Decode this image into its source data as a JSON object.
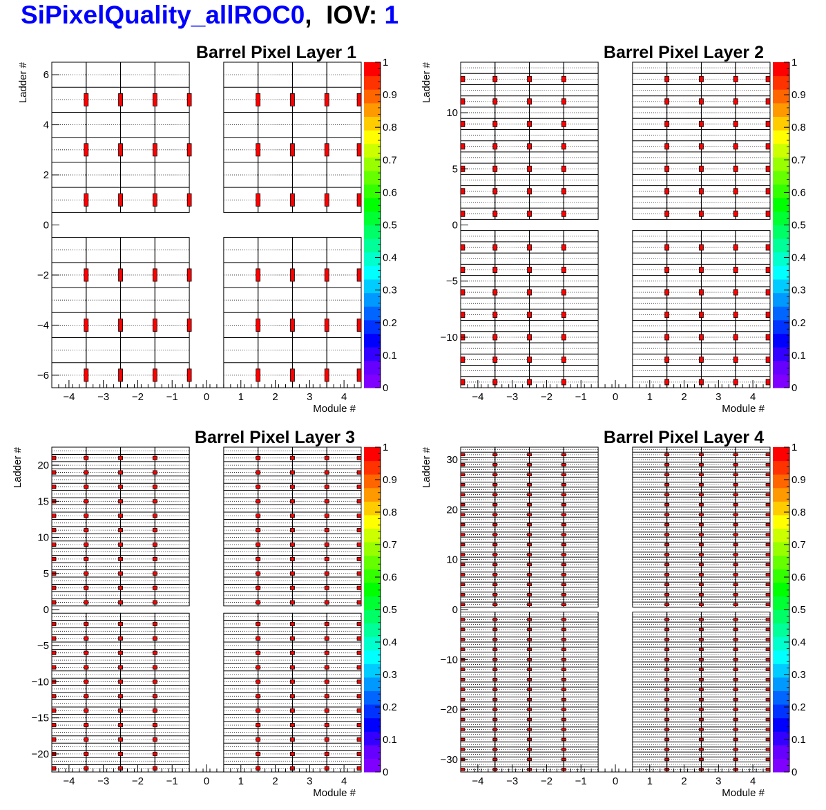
{
  "header": {
    "title_tag": "SiPixelQuality_allROC0",
    "separator": ",",
    "iov_label": "IOV:",
    "iov_value": "1"
  },
  "colorbar": {
    "ticks": [
      "0",
      "0.1",
      "0.2",
      "0.3",
      "0.4",
      "0.5",
      "0.6",
      "0.7",
      "0.8",
      "0.9",
      "1"
    ],
    "palette": [
      "#7f00ff",
      "#6600ff",
      "#3300ff",
      "#0000ff",
      "#0033ff",
      "#0066ff",
      "#0099ff",
      "#00ccff",
      "#00ffff",
      "#00ffcc",
      "#00ff99",
      "#00ff66",
      "#00ff33",
      "#00ff00",
      "#33ff00",
      "#66ff00",
      "#99ff00",
      "#ccff00",
      "#ffff00",
      "#ffcc00",
      "#ff9900",
      "#ff6600",
      "#ff3300",
      "#ff0000"
    ]
  },
  "chart_data": [
    {
      "type": "heatmap",
      "title": "Barrel Pixel Layer 1",
      "xlabel": "Module #",
      "ylabel": "Ladder #",
      "xlim": [
        -4.5,
        4.5
      ],
      "ylim": [
        -6.5,
        6.5
      ],
      "xticks": [
        "−4",
        "−3",
        "−2",
        "−1",
        "0",
        "1",
        "2",
        "3",
        "4"
      ],
      "yticks": [
        {
          "v": -6,
          "label": "−6"
        },
        {
          "v": -4,
          "label": "−4"
        },
        {
          "v": -2,
          "label": "−2"
        },
        {
          "v": 0,
          "label": "0"
        },
        {
          "v": 2,
          "label": "2"
        },
        {
          "v": 4,
          "label": "4"
        },
        {
          "v": 6,
          "label": "6"
        }
      ],
      "ladders": 6,
      "zlim": [
        0,
        1
      ],
      "masked_value": 1,
      "masked_columns": [
        -3.5,
        -2.5,
        -1.5,
        -0.5,
        1.5,
        2.5,
        3.5,
        4.5
      ],
      "masked_rows": [
        -6,
        -4,
        -2,
        1,
        3,
        5
      ]
    },
    {
      "type": "heatmap",
      "title": "Barrel Pixel Layer 2",
      "xlabel": "Module #",
      "ylabel": "Ladder #",
      "xlim": [
        -4.5,
        4.5
      ],
      "ylim": [
        -14.5,
        14.5
      ],
      "xticks": [
        "−4",
        "−3",
        "−2",
        "−1",
        "0",
        "1",
        "2",
        "3",
        "4"
      ],
      "yticks": [
        {
          "v": -10,
          "label": "−10"
        },
        {
          "v": -5,
          "label": "−5"
        },
        {
          "v": 0,
          "label": "0"
        },
        {
          "v": 5,
          "label": "5"
        },
        {
          "v": 10,
          "label": "10"
        }
      ],
      "ladders": 14,
      "zlim": [
        0,
        1
      ],
      "masked_value": 1,
      "masked_columns": [
        -4.5,
        -3.5,
        -2.5,
        -1.5,
        1.5,
        2.5,
        3.5,
        4.5
      ],
      "masked_rows": [
        -14,
        -12,
        -10,
        -8,
        -6,
        -4,
        -2,
        1,
        3,
        5,
        7,
        9,
        11,
        13
      ]
    },
    {
      "type": "heatmap",
      "title": "Barrel Pixel Layer 3",
      "xlabel": "Module #",
      "ylabel": "Ladder #",
      "xlim": [
        -4.5,
        4.5
      ],
      "ylim": [
        -22.5,
        22.5
      ],
      "xticks": [
        "−4",
        "−3",
        "−2",
        "−1",
        "0",
        "1",
        "2",
        "3",
        "4"
      ],
      "yticks": [
        {
          "v": -20,
          "label": "−20"
        },
        {
          "v": -15,
          "label": "−15"
        },
        {
          "v": -10,
          "label": "−10"
        },
        {
          "v": -5,
          "label": "−5"
        },
        {
          "v": 0,
          "label": "0"
        },
        {
          "v": 5,
          "label": "5"
        },
        {
          "v": 10,
          "label": "10"
        },
        {
          "v": 15,
          "label": "15"
        },
        {
          "v": 20,
          "label": "20"
        }
      ],
      "ladders": 22,
      "zlim": [
        0,
        1
      ],
      "masked_value": 1,
      "masked_columns": [
        -4.5,
        -3.5,
        -2.5,
        -1.5,
        1.5,
        2.5,
        3.5,
        4.5
      ],
      "masked_rows": [
        -22,
        -20,
        -18,
        -16,
        -14,
        -12,
        -10,
        -8,
        -6,
        -4,
        -2,
        1,
        3,
        5,
        7,
        9,
        11,
        13,
        15,
        17,
        19,
        21
      ]
    },
    {
      "type": "heatmap",
      "title": "Barrel Pixel Layer 4",
      "xlabel": "Module #",
      "ylabel": "Ladder #",
      "xlim": [
        -4.5,
        4.5
      ],
      "ylim": [
        -32.5,
        32.5
      ],
      "xticks": [
        "−4",
        "−3",
        "−2",
        "−1",
        "0",
        "1",
        "2",
        "3",
        "4"
      ],
      "yticks": [
        {
          "v": -30,
          "label": "−30"
        },
        {
          "v": -20,
          "label": "−20"
        },
        {
          "v": -10,
          "label": "−10"
        },
        {
          "v": 0,
          "label": "0"
        },
        {
          "v": 10,
          "label": "10"
        },
        {
          "v": 20,
          "label": "20"
        },
        {
          "v": 30,
          "label": "30"
        }
      ],
      "ladders": 32,
      "zlim": [
        0,
        1
      ],
      "masked_value": 1,
      "masked_columns": [
        -4.5,
        -3.5,
        -2.5,
        -1.5,
        1.5,
        2.5,
        3.5,
        4.5
      ],
      "masked_rows": [
        -32,
        -30,
        -28,
        -26,
        -24,
        -22,
        -20,
        -18,
        -16,
        -14,
        -12,
        -10,
        -8,
        -6,
        -4,
        -2,
        1,
        3,
        5,
        7,
        9,
        11,
        13,
        15,
        17,
        19,
        21,
        23,
        25,
        27,
        29,
        31
      ]
    }
  ]
}
